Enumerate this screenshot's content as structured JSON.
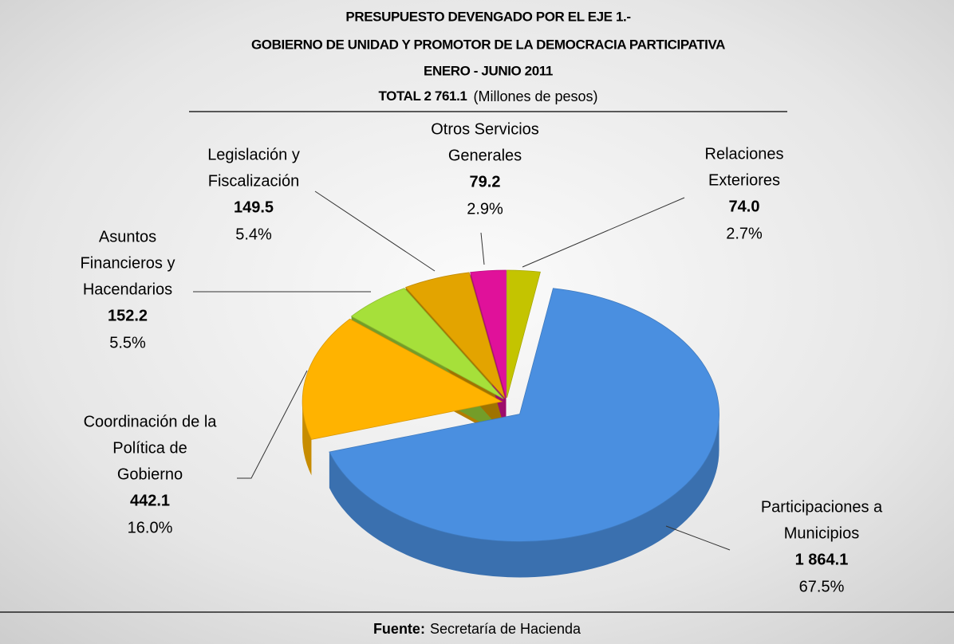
{
  "chart_data": {
    "type": "pie",
    "title": [
      "PRESUPUESTO DEVENGADO POR EL EJE 1.-",
      "GOBIERNO DE UNIDAD Y PROMOTOR DE LA DEMOCRACIA PARTICIPATIVA",
      "ENERO - JUNIO 2011"
    ],
    "total": "TOTAL 2 761.1",
    "unit": "(Millones de pesos)",
    "categories": [
      [
        "Relaciones",
        "Exteriores"
      ],
      [
        "Participaciones a",
        "Municipios"
      ],
      [
        "Coordinación de la",
        "Política de",
        "Gobierno"
      ],
      [
        "Asuntos",
        "Financieros y",
        "Hacendarios"
      ],
      [
        "Legislación y",
        "Fiscalización"
      ],
      [
        "Otros Servicios",
        "Generales"
      ]
    ],
    "values": [
      74.0,
      1864.1,
      442.1,
      152.2,
      149.5,
      79.2
    ],
    "value_labels": [
      "74.0",
      "1 864.1",
      "442.1",
      "152.2",
      "149.5",
      "79.2"
    ],
    "percents": [
      2.7,
      67.5,
      16.0,
      5.5,
      5.4,
      2.9
    ],
    "percent_labels": [
      "2.7%",
      "67.5%",
      "16.0%",
      "5.5%",
      "5.4%",
      "2.9%"
    ],
    "colors": [
      "#c4c400",
      "#4a8fe0",
      "#ffb300",
      "#a6e03a",
      "#e3a400",
      "#e0119a"
    ],
    "source_label": "Fuente:",
    "source": "Secretaría de Hacienda"
  }
}
